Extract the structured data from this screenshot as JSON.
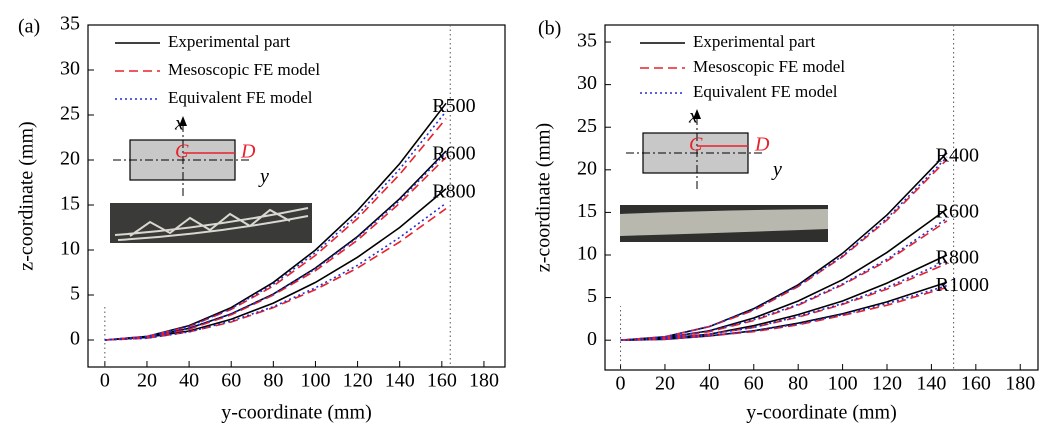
{
  "chart_data": [
    {
      "type": "line",
      "panel_label": "(a)",
      "x_label": "y-coordinate (mm)",
      "y_label": "z-coordinate (mm)",
      "x": [
        0,
        20,
        40,
        60,
        80,
        100,
        120,
        140,
        162
      ],
      "xlim": [
        -8,
        190
      ],
      "xticks": [
        0,
        20,
        40,
        60,
        80,
        100,
        120,
        140,
        160,
        180
      ],
      "ylim": [
        -3,
        35
      ],
      "yticks": [
        0,
        5,
        10,
        15,
        20,
        25,
        30,
        35
      ],
      "reference_x": 164,
      "curve_labels": [
        "R500",
        "R600",
        "R800"
      ],
      "inset_labels": [
        "x",
        "y",
        "C",
        "D"
      ],
      "series": [
        {
          "name": "Experimental part",
          "color": "#000000",
          "dash": "solid",
          "lines": [
            [
              0,
              0.4,
              1.6,
              3.6,
              6.4,
              10.0,
              14.4,
              19.6,
              26.3
            ],
            [
              0,
              0.3,
              1.3,
              2.9,
              5.1,
              8.0,
              11.5,
              15.7,
              21
            ],
            [
              0,
              0.3,
              1.0,
              2.3,
              4.1,
              6.4,
              9.2,
              12.5,
              16.8
            ]
          ]
        },
        {
          "name": "Mesoscopic FE model",
          "color": "#e8212b",
          "dash": "dashed",
          "lines": [
            [
              0,
              0.4,
              1.5,
              3.4,
              6.0,
              9.4,
              13.5,
              18.4,
              24.6
            ],
            [
              0,
              0.3,
              1.2,
              2.8,
              5.0,
              7.7,
              11.1,
              15.2,
              20.3
            ],
            [
              0,
              0.2,
              0.9,
              2.0,
              3.6,
              5.6,
              8.0,
              10.9,
              14.6
            ]
          ]
        },
        {
          "name": "Equivalent FE model",
          "color": "#1f2fd6",
          "dash": "dotted",
          "lines": [
            [
              0,
              0.4,
              1.5,
              3.5,
              6.2,
              9.7,
              13.9,
              19.0,
              25.4
            ],
            [
              0,
              0.3,
              1.3,
              2.9,
              5.1,
              7.9,
              11.4,
              15.5,
              20.8
            ],
            [
              0,
              0.2,
              0.9,
              2.1,
              3.7,
              5.8,
              8.3,
              11.4,
              15.2
            ]
          ]
        }
      ]
    },
    {
      "type": "line",
      "panel_label": "(b)",
      "x_label": "y-coordinate (mm)",
      "y_label": "z-coordinate (mm)",
      "x": [
        0,
        20,
        40,
        60,
        80,
        100,
        120,
        147
      ],
      "xlim": [
        -7,
        188
      ],
      "xticks": [
        0,
        20,
        40,
        60,
        80,
        100,
        120,
        140,
        160,
        180
      ],
      "ylim": [
        -3.5,
        37
      ],
      "yticks": [
        0,
        5,
        10,
        15,
        20,
        25,
        30,
        35
      ],
      "reference_x": 150,
      "curve_labels": [
        "R400",
        "R600",
        "R800",
        "R1000"
      ],
      "inset_labels": [
        "x",
        "y",
        "C",
        "D"
      ],
      "series": [
        {
          "name": "Experimental part",
          "color": "#000000",
          "dash": "solid",
          "lines": [
            [
              0,
              0.4,
              1.6,
              3.7,
              6.5,
              10.2,
              14.7,
              22
            ],
            [
              0,
              0.3,
              1.1,
              2.6,
              4.6,
              7.1,
              10.3,
              15.4
            ],
            [
              0,
              0.2,
              0.7,
              1.7,
              3.0,
              4.6,
              6.7,
              10
            ],
            [
              0,
              0.1,
              0.5,
              1.1,
              2.0,
              3.1,
              4.5,
              6.8
            ]
          ]
        },
        {
          "name": "Mesoscopic FE model",
          "color": "#e8212b",
          "dash": "dashed",
          "lines": [
            [
              0,
              0.4,
              1.6,
              3.5,
              6.3,
              9.8,
              14.1,
              21.2
            ],
            [
              0,
              0.3,
              1.0,
              2.3,
              4.1,
              6.5,
              9.3,
              14
            ],
            [
              0,
              0.2,
              0.7,
              1.5,
              2.7,
              4.2,
              6.0,
              9
            ],
            [
              0,
              0.1,
              0.5,
              1.0,
              1.8,
              2.9,
              4.1,
              6.2
            ]
          ]
        },
        {
          "name": "Equivalent FE model",
          "color": "#1f2fd6",
          "dash": "dotted",
          "lines": [
            [
              0,
              0.4,
              1.6,
              3.6,
              6.4,
              9.9,
              14.3,
              21.5
            ],
            [
              0,
              0.3,
              1.1,
              2.4,
              4.2,
              6.6,
              9.5,
              14.3
            ],
            [
              0,
              0.2,
              0.7,
              1.5,
              2.8,
              4.3,
              6.2,
              9.3
            ],
            [
              0,
              0.1,
              0.5,
              1.1,
              1.9,
              3.0,
              4.3,
              6.4
            ]
          ]
        }
      ]
    }
  ]
}
